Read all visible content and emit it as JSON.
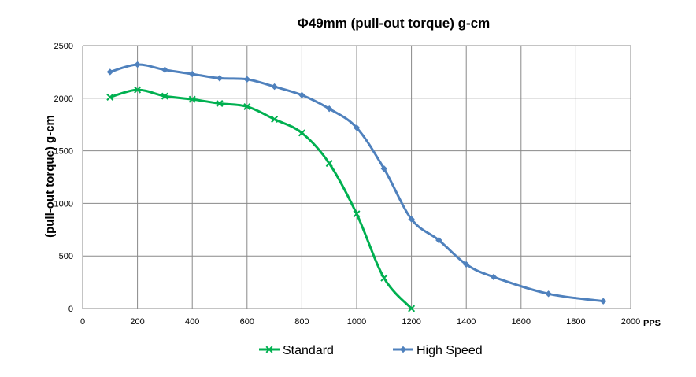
{
  "chart_data": {
    "type": "line",
    "title": "Φ49mm   (pull-out torque) g-cm",
    "ylabel": "(pull-out torque) g-cm",
    "xlabel": "PPS",
    "xlim": [
      0,
      2000
    ],
    "ylim": [
      0,
      2500
    ],
    "xticks": [
      0,
      200,
      400,
      600,
      800,
      1000,
      1200,
      1400,
      1600,
      1800,
      2000
    ],
    "yticks": [
      0,
      500,
      1000,
      1500,
      2000,
      2500
    ],
    "grid": true,
    "legend_position": "bottom",
    "series": [
      {
        "name": "Standard",
        "color": "#00b050",
        "marker": "x",
        "x": [
          100,
          200,
          300,
          400,
          500,
          600,
          700,
          800,
          900,
          1000,
          1100,
          1200
        ],
        "values": [
          2010,
          2080,
          2020,
          1990,
          1950,
          1920,
          1800,
          1670,
          1380,
          900,
          290,
          0
        ]
      },
      {
        "name": "High Speed",
        "color": "#4f81bd",
        "marker": "diamond",
        "x": [
          100,
          200,
          300,
          400,
          500,
          600,
          700,
          800,
          900,
          1000,
          1100,
          1200,
          1300,
          1400,
          1500,
          1700,
          1900
        ],
        "values": [
          2250,
          2320,
          2270,
          2230,
          2190,
          2180,
          2110,
          2030,
          1900,
          1720,
          1330,
          850,
          650,
          420,
          300,
          140,
          70
        ]
      }
    ]
  }
}
